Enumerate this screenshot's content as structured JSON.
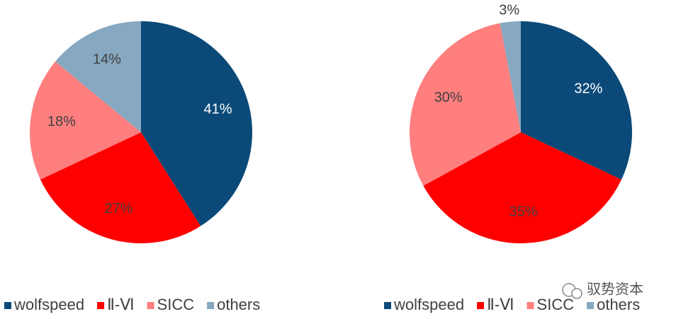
{
  "chart_data": [
    {
      "type": "pie",
      "categories": [
        "wolfspeed",
        "Ⅱ-Ⅵ",
        "SICC",
        "others"
      ],
      "values": [
        41,
        27,
        18,
        14
      ],
      "value_labels": [
        "41%",
        "27%",
        "18%",
        "14%"
      ],
      "colors": [
        "#0b4a78",
        "#ff0000",
        "#ff7f7f",
        "#86a8c0"
      ]
    },
    {
      "type": "pie",
      "categories": [
        "wolfspeed",
        "Ⅱ-Ⅵ",
        "SICC",
        "others"
      ],
      "values": [
        32,
        35,
        30,
        3
      ],
      "value_labels": [
        "32%",
        "35%",
        "30%",
        "3%"
      ],
      "colors": [
        "#0b4a78",
        "#ff0000",
        "#ff7f7f",
        "#86a8c0"
      ]
    }
  ],
  "watermark": "驭势资本"
}
